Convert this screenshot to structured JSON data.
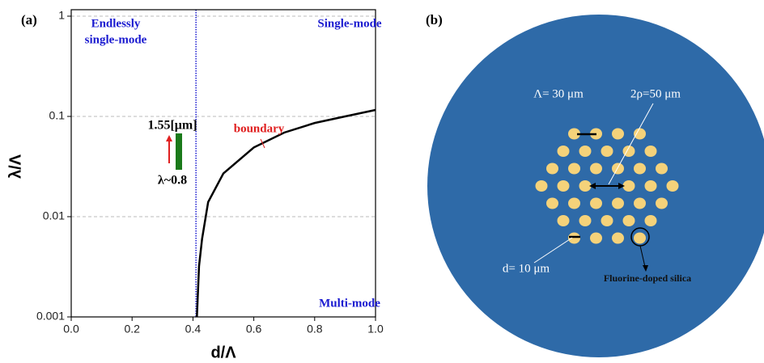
{
  "panel_labels": [
    "(a)",
    "(b)"
  ],
  "chart_data": {
    "type": "line",
    "xlabel": "d/Λ",
    "ylabel": "λ/Λ",
    "x": [
      0.413,
      0.42,
      0.43,
      0.45,
      0.5,
      0.6,
      0.7,
      0.8,
      0.9,
      1.0
    ],
    "series": [
      {
        "name": "boundary",
        "color": "#000000",
        "values": [
          0.001,
          0.0032,
          0.006,
          0.014,
          0.027,
          0.049,
          0.069,
          0.086,
          0.1,
          0.116
        ]
      }
    ],
    "xlim": [
      0,
      1.0
    ],
    "xticks": [
      {
        "value": 0,
        "label": "0.0"
      },
      0.2,
      0.4,
      0.6,
      0.8,
      {
        "value": 1.0,
        "label": "1.0"
      }
    ],
    "ylim": [
      0.001,
      1
    ],
    "yticks": [
      0.001,
      0.01,
      0.1,
      1
    ],
    "yscale": "log",
    "grid": "y",
    "vlines": [
      {
        "x": 0.41,
        "color": "#1a1ad0"
      }
    ],
    "annotations": {
      "endlessly": [
        "Endlessly",
        "single-mode"
      ],
      "single_mode": "Single-mode",
      "multi_mode": "Multi-mode",
      "boundary": "boundary",
      "wavelength_top": "1.55[μm]",
      "wavelength_bottom": "λ~0.8"
    }
  },
  "diagram": {
    "pitch": "Λ= 30 μm",
    "core": "2ρ=50 μm",
    "hole": "d= 10 μm",
    "material": "Fluorine-doped silica"
  }
}
